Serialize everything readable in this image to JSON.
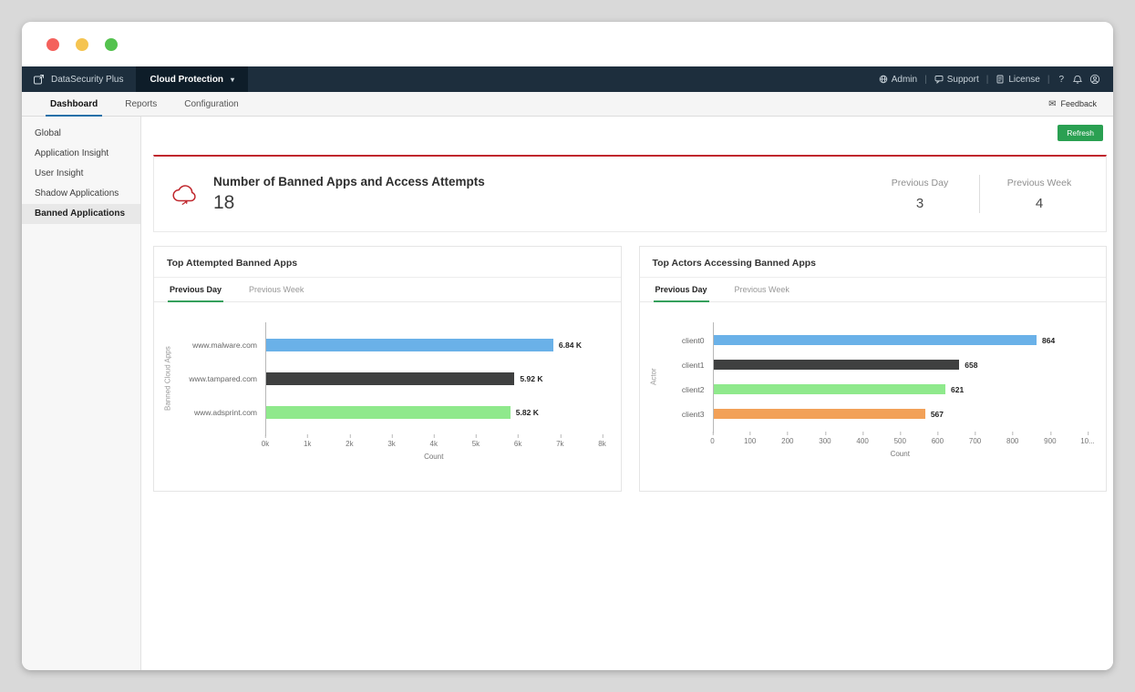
{
  "topbar": {
    "product_name": "DataSecurity Plus",
    "module_selector": "Cloud Protection",
    "admin_label": "Admin",
    "support_label": "Support",
    "license_label": "License",
    "help_label": "?"
  },
  "tabbar": {
    "tabs": [
      {
        "label": "Dashboard",
        "active": true
      },
      {
        "label": "Reports",
        "active": false
      },
      {
        "label": "Configuration",
        "active": false
      }
    ],
    "feedback_label": "Feedback"
  },
  "sidebar": {
    "items": [
      {
        "label": "Global",
        "active": false
      },
      {
        "label": "Application Insight",
        "active": false
      },
      {
        "label": "User Insight",
        "active": false
      },
      {
        "label": "Shadow Applications",
        "active": false
      },
      {
        "label": "Banned Applications",
        "active": true
      }
    ]
  },
  "toolbar": {
    "refresh_label": "Refresh"
  },
  "summary": {
    "title": "Number of Banned Apps and Access Attempts",
    "total": "18",
    "previous_day_label": "Previous Day",
    "previous_day_value": "3",
    "previous_week_label": "Previous Week",
    "previous_week_value": "4"
  },
  "colors": {
    "accent_red": "#c0272d",
    "refresh_green": "#2aa052",
    "active_tab_underline": "#2470a8",
    "chart_tab_underline": "#35a05c",
    "bar_blue": "#6ab1e8",
    "bar_dark": "#3f4040",
    "bar_green": "#8fe98c",
    "bar_orange": "#f2a158"
  },
  "chart_data": [
    {
      "type": "bar",
      "orientation": "horizontal",
      "title": "Top Attempted Banned Apps",
      "tabs": [
        "Previous Day",
        "Previous Week"
      ],
      "active_tab": "Previous Day",
      "categories": [
        "www.malware.com",
        "www.tampared.com",
        "www.adsprint.com"
      ],
      "values": [
        6840,
        5920,
        5820
      ],
      "value_labels": [
        "6.84 K",
        "5.92 K",
        "5.82 K"
      ],
      "bar_colors": [
        "#6ab1e8",
        "#3f4040",
        "#8fe98c"
      ],
      "xlabel": "Count",
      "ylabel": "Banned Cloud Apps",
      "xlim": [
        0,
        8000
      ],
      "x_ticks": [
        "0k",
        "1k",
        "2k",
        "3k",
        "4k",
        "5k",
        "6k",
        "7k",
        "8k"
      ],
      "grid": false,
      "legend": false
    },
    {
      "type": "bar",
      "orientation": "horizontal",
      "title": "Top Actors Accessing Banned Apps",
      "tabs": [
        "Previous Day",
        "Previous Week"
      ],
      "active_tab": "Previous Day",
      "categories": [
        "client0",
        "client1",
        "client2",
        "client3"
      ],
      "values": [
        864,
        658,
        621,
        567
      ],
      "value_labels": [
        "864",
        "658",
        "621",
        "567"
      ],
      "bar_colors": [
        "#6ab1e8",
        "#3f4040",
        "#8fe98c",
        "#f2a158"
      ],
      "xlabel": "Count",
      "ylabel": "Actor",
      "xlim": [
        0,
        1000
      ],
      "x_ticks": [
        "0",
        "100",
        "200",
        "300",
        "400",
        "500",
        "600",
        "700",
        "800",
        "900",
        "10..."
      ],
      "grid": false,
      "legend": false
    }
  ]
}
